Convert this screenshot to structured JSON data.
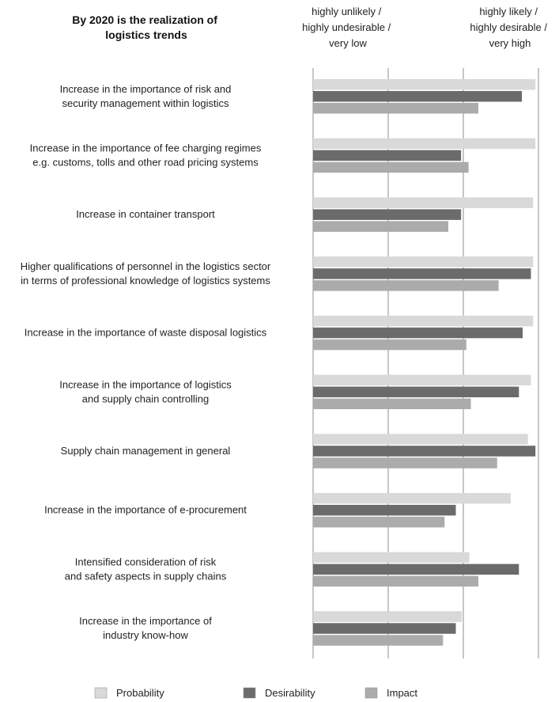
{
  "chart_data": {
    "type": "bar",
    "orientation": "horizontal",
    "title": "By 2020 is the realization of logistics trends",
    "title_lines": [
      "By 2020 is the realization of",
      "logistics trends"
    ],
    "scale_low_lines": [
      "highly unlikely /",
      "highly undesirable /",
      "very low"
    ],
    "scale_high_lines": [
      "highly likely /",
      "highly desirable /",
      "very high"
    ],
    "xlim": [
      1,
      4
    ],
    "grid": true,
    "legend_position": "bottom",
    "categories": [
      [
        "Increase in the importance of risk and",
        "security management within logistics"
      ],
      [
        "Increase in the importance of fee charging regimes",
        "e.g. customs, tolls and other road pricing systems"
      ],
      [
        "Increase in container transport"
      ],
      [
        "Higher qualifications of personnel in the logistics sector",
        "in terms of professional knowledge of logistics systems"
      ],
      [
        "Increase in the importance of waste disposal logistics"
      ],
      [
        "Increase in the importance of logistics",
        "and supply chain controlling"
      ],
      [
        "Supply chain management in general"
      ],
      [
        "Increase in the importance of e-procurement"
      ],
      [
        "Intensified consideration of risk",
        "and safety aspects in supply chains"
      ],
      [
        "Increase in the importance of",
        "industry know-how"
      ]
    ],
    "series": [
      {
        "name": "Probability",
        "color": "#d9d9d9",
        "values": [
          3.96,
          3.96,
          3.93,
          3.93,
          3.93,
          3.9,
          3.86,
          3.63,
          3.08,
          2.98
        ]
      },
      {
        "name": "Desirability",
        "color": "#6b6b6b",
        "values": [
          3.78,
          2.97,
          2.97,
          3.9,
          3.79,
          3.74,
          3.96,
          2.9,
          3.74,
          2.9
        ]
      },
      {
        "name": "Impact",
        "color": "#ababab",
        "values": [
          3.2,
          3.07,
          2.8,
          3.47,
          3.04,
          3.1,
          3.45,
          2.75,
          3.2,
          2.73
        ]
      }
    ]
  }
}
